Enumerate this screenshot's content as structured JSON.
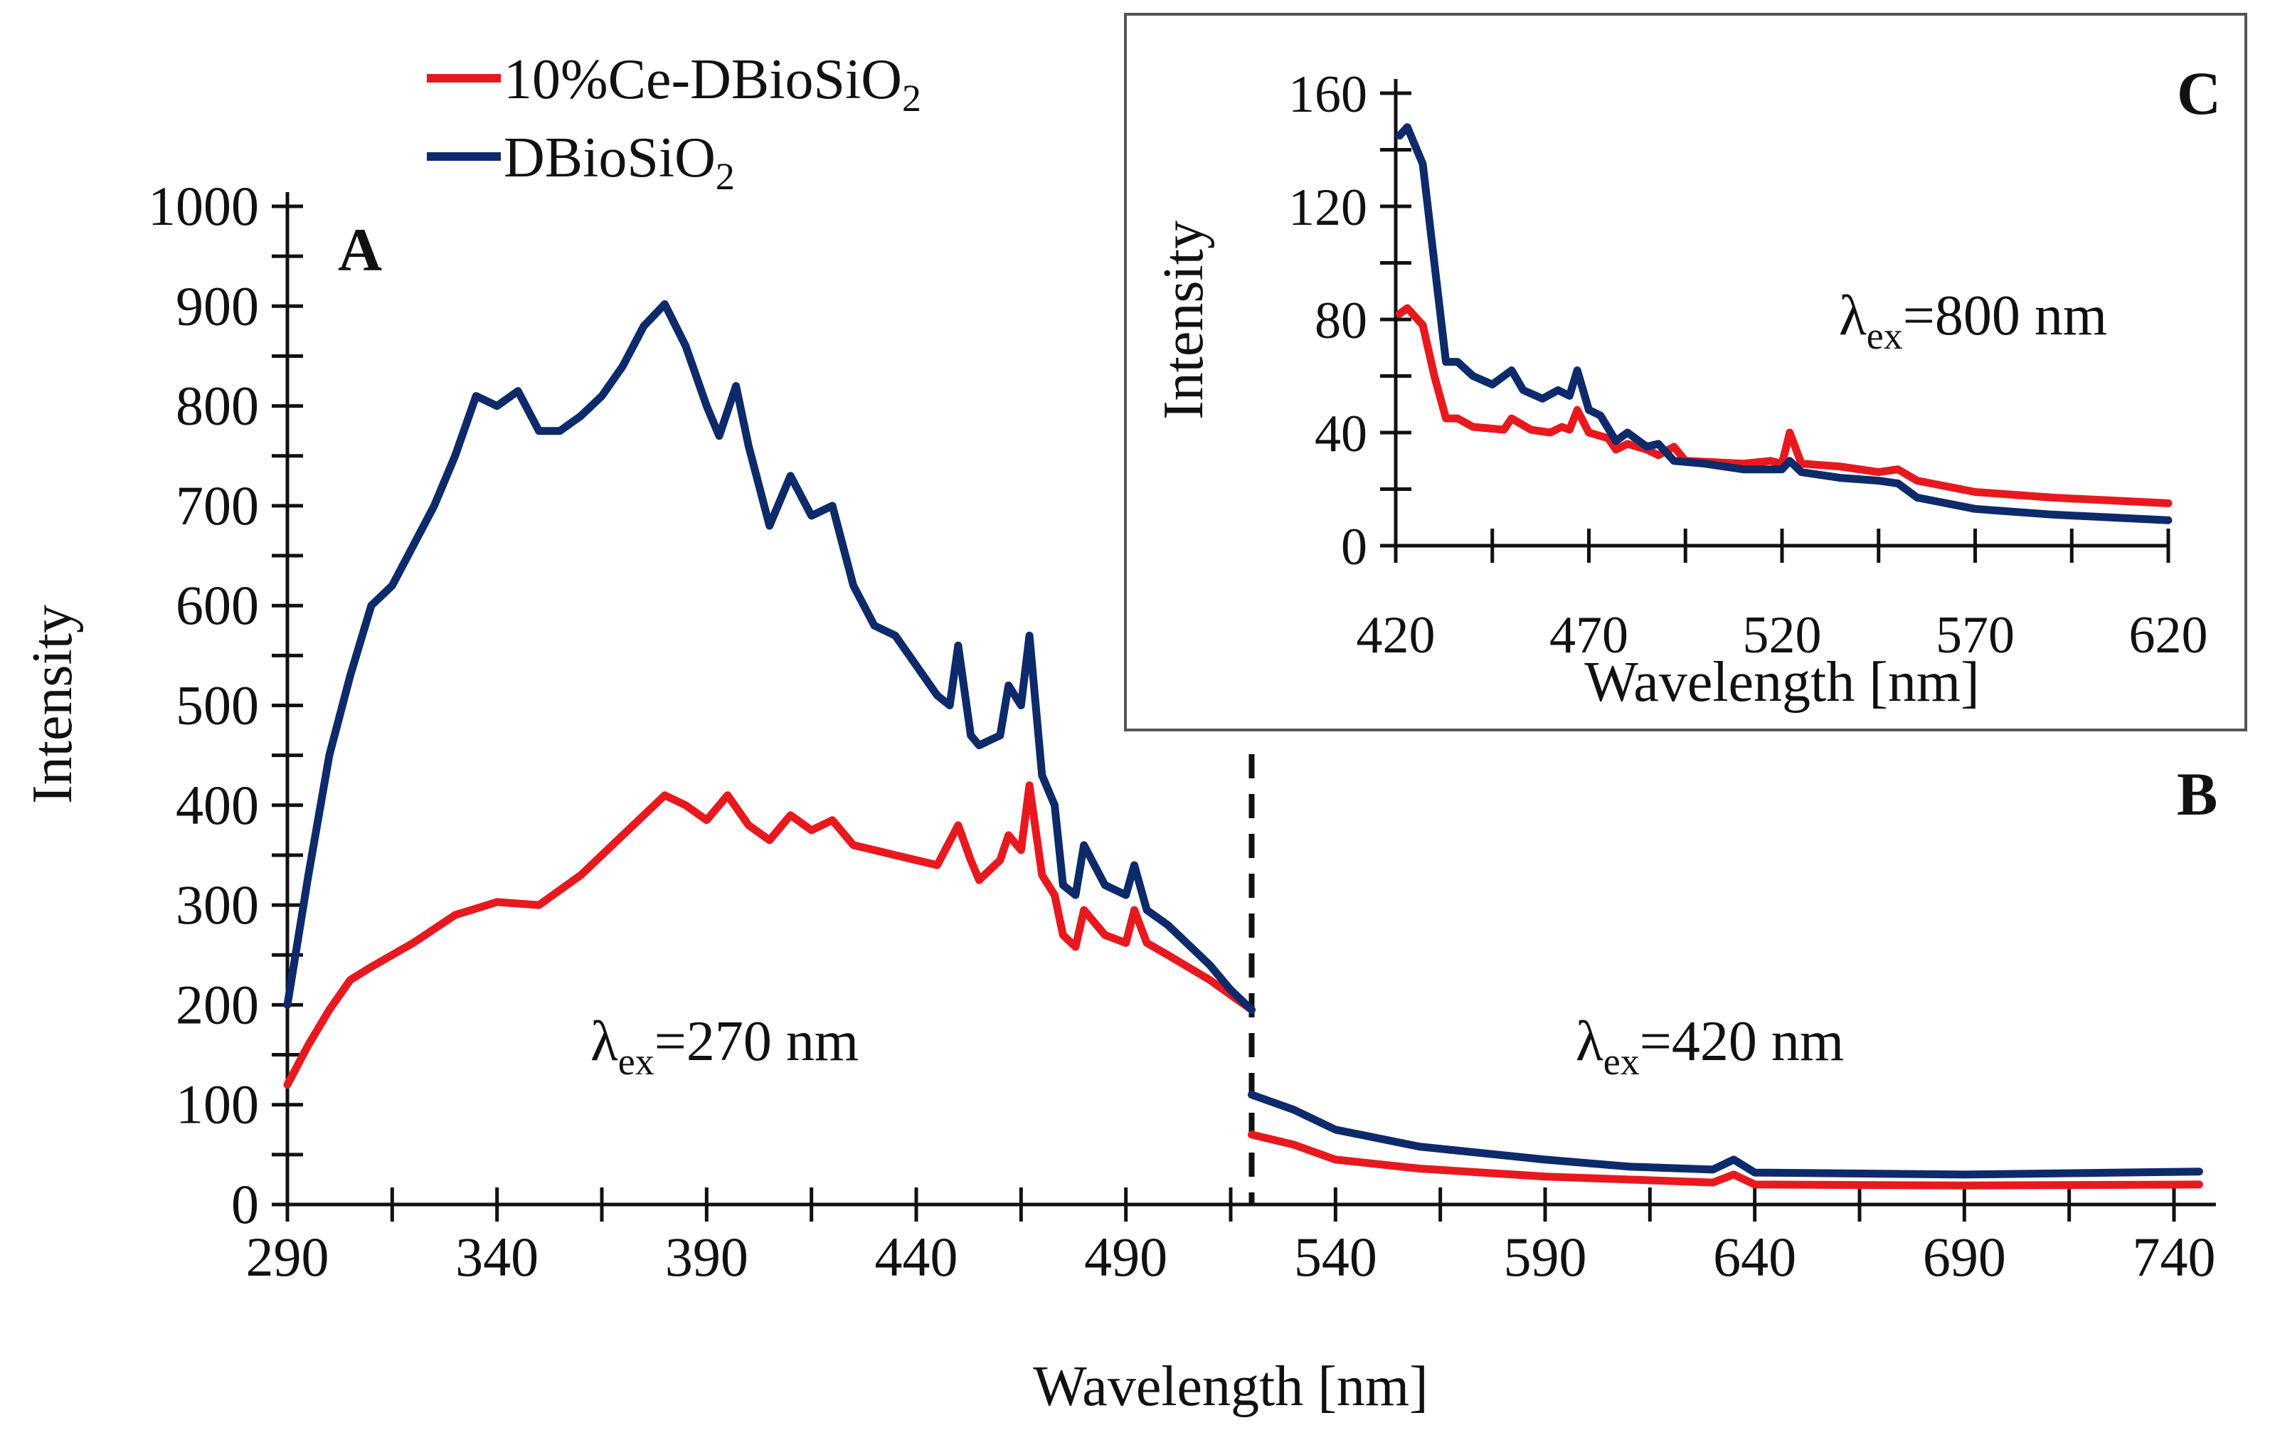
{
  "chart_data": [
    {
      "type": "line",
      "panel": "A/B",
      "xlabel": "Wavelength [nm]",
      "ylabel": "Intensity",
      "xlim": [
        290,
        750
      ],
      "ylim": [
        0,
        1000
      ],
      "xticks": [
        290,
        340,
        390,
        440,
        490,
        540,
        590,
        640,
        690,
        740
      ],
      "yticks": [
        0,
        100,
        200,
        300,
        400,
        500,
        600,
        700,
        800,
        900,
        1000
      ],
      "grid": false,
      "legend": {
        "placement": "top-left",
        "entries": [
          "10%Ce-DBioSiO2",
          "DBioSiO2"
        ]
      },
      "panel_labels": [
        "A",
        "B"
      ],
      "divider_x": 520,
      "annotations": [
        {
          "text_main": "λ",
          "text_sub": "ex",
          "text_rest": "=270 nm"
        },
        {
          "text_main": "λ",
          "text_sub": "ex",
          "text_rest": "=420 nm"
        }
      ],
      "series": [
        {
          "name": "10%Ce-DBioSiO2",
          "color": "#e8191e",
          "segments": [
            [
              [
                290,
                120
              ],
              [
                295,
                160
              ],
              [
                300,
                195
              ],
              [
                305,
                225
              ],
              [
                310,
                238
              ],
              [
                320,
                262
              ],
              [
                330,
                290
              ],
              [
                340,
                303
              ],
              [
                350,
                300
              ],
              [
                360,
                330
              ],
              [
                370,
                370
              ],
              [
                380,
                410
              ],
              [
                385,
                400
              ],
              [
                390,
                385
              ],
              [
                395,
                410
              ],
              [
                400,
                380
              ],
              [
                405,
                365
              ],
              [
                410,
                390
              ],
              [
                415,
                375
              ],
              [
                420,
                385
              ],
              [
                425,
                360
              ],
              [
                430,
                355
              ],
              [
                440,
                345
              ],
              [
                445,
                340
              ],
              [
                450,
                380
              ],
              [
                453,
                345
              ],
              [
                455,
                325
              ],
              [
                460,
                345
              ],
              [
                462,
                370
              ],
              [
                465,
                355
              ],
              [
                467,
                420
              ],
              [
                470,
                330
              ],
              [
                473,
                310
              ],
              [
                475,
                270
              ],
              [
                478,
                258
              ],
              [
                480,
                295
              ],
              [
                485,
                270
              ],
              [
                490,
                262
              ],
              [
                492,
                295
              ],
              [
                495,
                262
              ],
              [
                500,
                250
              ],
              [
                510,
                225
              ],
              [
                520,
                195
              ]
            ],
            [
              [
                520,
                70
              ],
              [
                530,
                60
              ],
              [
                540,
                45
              ],
              [
                560,
                36
              ],
              [
                590,
                28
              ],
              [
                630,
                22
              ],
              [
                635,
                30
              ],
              [
                640,
                20
              ],
              [
                690,
                19
              ],
              [
                750,
                20
              ]
            ]
          ]
        },
        {
          "name": "DBioSiO2",
          "color": "#0d2a6b",
          "segments": [
            [
              [
                290,
                200
              ],
              [
                295,
                330
              ],
              [
                300,
                450
              ],
              [
                305,
                530
              ],
              [
                310,
                600
              ],
              [
                315,
                620
              ],
              [
                320,
                660
              ],
              [
                325,
                700
              ],
              [
                330,
                750
              ],
              [
                335,
                810
              ],
              [
                340,
                800
              ],
              [
                345,
                815
              ],
              [
                350,
                775
              ],
              [
                355,
                775
              ],
              [
                360,
                790
              ],
              [
                365,
                810
              ],
              [
                370,
                840
              ],
              [
                375,
                880
              ],
              [
                380,
                902
              ],
              [
                385,
                860
              ],
              [
                390,
                800
              ],
              [
                393,
                770
              ],
              [
                397,
                820
              ],
              [
                400,
                760
              ],
              [
                405,
                680
              ],
              [
                410,
                730
              ],
              [
                415,
                690
              ],
              [
                420,
                700
              ],
              [
                425,
                620
              ],
              [
                430,
                580
              ],
              [
                435,
                570
              ],
              [
                440,
                540
              ],
              [
                445,
                510
              ],
              [
                448,
                500
              ],
              [
                450,
                560
              ],
              [
                453,
                470
              ],
              [
                455,
                460
              ],
              [
                460,
                470
              ],
              [
                462,
                520
              ],
              [
                465,
                500
              ],
              [
                467,
                570
              ],
              [
                470,
                430
              ],
              [
                473,
                400
              ],
              [
                475,
                320
              ],
              [
                478,
                310
              ],
              [
                480,
                360
              ],
              [
                485,
                320
              ],
              [
                490,
                310
              ],
              [
                492,
                340
              ],
              [
                495,
                295
              ],
              [
                500,
                280
              ],
              [
                505,
                260
              ],
              [
                510,
                240
              ],
              [
                515,
                215
              ],
              [
                520,
                195
              ]
            ],
            [
              [
                520,
                110
              ],
              [
                530,
                95
              ],
              [
                540,
                75
              ],
              [
                560,
                58
              ],
              [
                590,
                45
              ],
              [
                610,
                38
              ],
              [
                630,
                35
              ],
              [
                635,
                45
              ],
              [
                640,
                32
              ],
              [
                690,
                30
              ],
              [
                750,
                33
              ]
            ]
          ]
        }
      ]
    },
    {
      "type": "line",
      "panel": "C",
      "inset": true,
      "xlabel": "Wavelength [nm]",
      "ylabel": "Intensity",
      "xlim": [
        420,
        620
      ],
      "ylim": [
        0,
        160
      ],
      "xticks": [
        420,
        470,
        520,
        570,
        620
      ],
      "yticks": [
        0,
        40,
        80,
        120,
        160
      ],
      "grid": false,
      "panel_labels": [
        "C"
      ],
      "annotations": [
        {
          "text_main": "λ",
          "text_sub": "ex",
          "text_rest": "=800 nm"
        }
      ],
      "series": [
        {
          "name": "10%Ce-DBioSiO2",
          "color": "#e8191e",
          "points": [
            [
              421,
              82
            ],
            [
              423,
              84
            ],
            [
              427,
              78
            ],
            [
              430,
              60
            ],
            [
              433,
              45
            ],
            [
              436,
              45
            ],
            [
              440,
              42
            ],
            [
              448,
              41
            ],
            [
              450,
              45
            ],
            [
              455,
              41
            ],
            [
              460,
              40
            ],
            [
              463,
              42
            ],
            [
              465,
              41
            ],
            [
              467,
              48
            ],
            [
              470,
              40
            ],
            [
              475,
              38
            ],
            [
              477,
              34
            ],
            [
              480,
              36
            ],
            [
              485,
              34
            ],
            [
              488,
              32
            ],
            [
              492,
              35
            ],
            [
              495,
              30
            ],
            [
              510,
              29
            ],
            [
              517,
              30
            ],
            [
              520,
              29
            ],
            [
              522,
              40
            ],
            [
              525,
              29
            ],
            [
              535,
              28
            ],
            [
              545,
              26
            ],
            [
              550,
              27
            ],
            [
              555,
              23
            ],
            [
              570,
              19
            ],
            [
              590,
              17
            ],
            [
              620,
              15
            ]
          ]
        },
        {
          "name": "DBioSiO2",
          "color": "#0d2a6b",
          "points": [
            [
              421,
              145
            ],
            [
              423,
              148
            ],
            [
              427,
              135
            ],
            [
              430,
              100
            ],
            [
              433,
              65
            ],
            [
              436,
              65
            ],
            [
              440,
              60
            ],
            [
              445,
              57
            ],
            [
              450,
              62
            ],
            [
              453,
              55
            ],
            [
              458,
              52
            ],
            [
              462,
              55
            ],
            [
              465,
              53
            ],
            [
              467,
              62
            ],
            [
              470,
              48
            ],
            [
              473,
              46
            ],
            [
              477,
              37
            ],
            [
              480,
              40
            ],
            [
              485,
              35
            ],
            [
              488,
              36
            ],
            [
              492,
              30
            ],
            [
              500,
              29
            ],
            [
              510,
              27
            ],
            [
              520,
              27
            ],
            [
              522,
              30
            ],
            [
              525,
              26
            ],
            [
              535,
              24
            ],
            [
              545,
              23
            ],
            [
              550,
              22
            ],
            [
              555,
              17
            ],
            [
              570,
              13
            ],
            [
              590,
              11
            ],
            [
              620,
              9
            ]
          ]
        }
      ]
    }
  ],
  "legend": {
    "red_label": "10%Ce-DBioSiO",
    "red_sub": "2",
    "blue_label": "DBioSiO",
    "blue_sub": "2"
  }
}
